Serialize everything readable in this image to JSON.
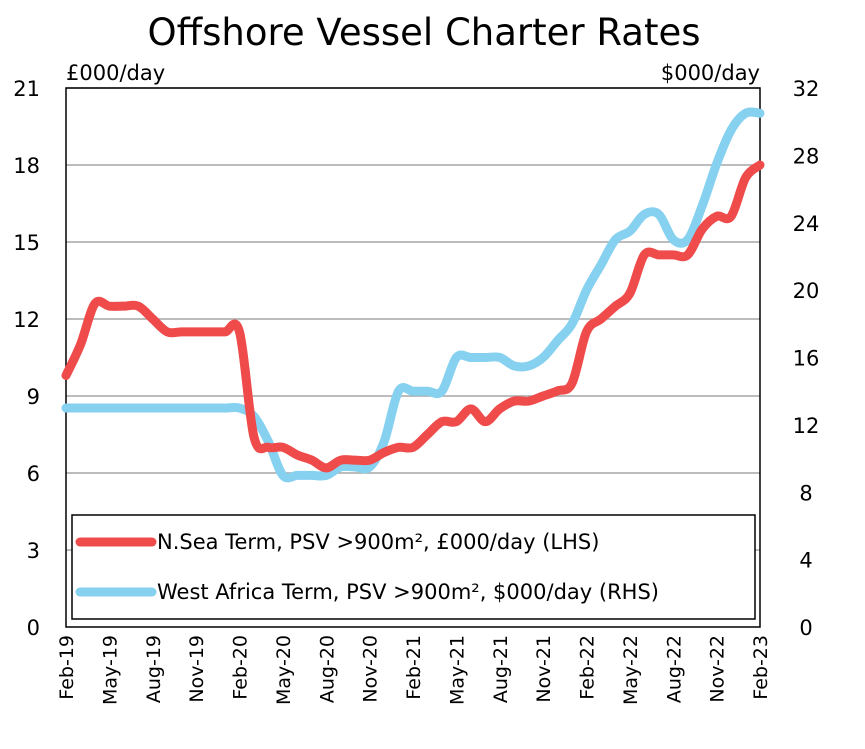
{
  "chart_data": {
    "type": "line",
    "title": "Offshore Vessel Charter Rates",
    "left_axis": {
      "unit_label": "£000/day",
      "ylim": [
        0,
        21
      ],
      "ticks": [
        "0",
        "3",
        "6",
        "9",
        "12",
        "15",
        "18",
        "21"
      ],
      "tick_values": [
        0,
        3,
        6,
        9,
        12,
        15,
        18,
        21
      ]
    },
    "right_axis": {
      "unit_label": "$000/day",
      "ylim": [
        0,
        32
      ],
      "ticks": [
        "0",
        "4",
        "8",
        "12",
        "16",
        "20",
        "24",
        "28",
        "32"
      ],
      "tick_values": [
        0,
        4,
        8,
        12,
        16,
        20,
        24,
        28,
        32
      ]
    },
    "x_axis": {
      "range_months": [
        0,
        48
      ],
      "ticks": [
        "Feb-19",
        "May-19",
        "Aug-19",
        "Nov-19",
        "Feb-20",
        "May-20",
        "Aug-20",
        "Nov-20",
        "Feb-21",
        "May-21",
        "Aug-21",
        "Nov-21",
        "Feb-22",
        "May-22",
        "Aug-22",
        "Nov-22",
        "Feb-23"
      ],
      "tick_months": [
        0,
        3,
        6,
        9,
        12,
        15,
        18,
        21,
        24,
        27,
        30,
        33,
        36,
        39,
        42,
        45,
        48
      ]
    },
    "grid": "horizontal",
    "legend_position": "bottom-left",
    "series": [
      {
        "name": "N.Sea Term, PSV >900m², £000/day (LHS)",
        "axis": "left",
        "color": "#ef4b4b",
        "x": [
          0,
          1,
          2,
          3,
          4,
          5,
          6,
          7,
          8,
          9,
          10,
          11,
          12,
          13,
          14,
          15,
          16,
          17,
          18,
          19,
          20,
          21,
          22,
          23,
          24,
          25,
          26,
          27,
          28,
          29,
          30,
          31,
          32,
          33,
          34,
          35,
          36,
          37,
          38,
          39,
          40,
          41,
          42,
          43,
          44,
          45,
          46,
          47,
          48
        ],
        "y": [
          9.8,
          11,
          12.6,
          12.5,
          12.5,
          12.5,
          12,
          11.5,
          11.5,
          11.5,
          11.5,
          11.5,
          11.5,
          7.4,
          7,
          7,
          6.7,
          6.5,
          6.2,
          6.5,
          6.5,
          6.5,
          6.8,
          7,
          7,
          7.5,
          8,
          8,
          8.5,
          8,
          8.5,
          8.8,
          8.8,
          9,
          9.2,
          9.5,
          11.5,
          12,
          12.5,
          13,
          14.5,
          14.5,
          14.5,
          14.5,
          15.5,
          16,
          16,
          17.5,
          18
        ]
      },
      {
        "name": "West Africa Term, PSV >900m², $000/day (RHS)",
        "axis": "right",
        "color": "#86d0f0",
        "x": [
          0,
          1,
          2,
          3,
          4,
          5,
          6,
          7,
          8,
          9,
          10,
          11,
          12,
          13,
          14,
          15,
          16,
          17,
          18,
          19,
          20,
          21,
          22,
          23,
          24,
          25,
          26,
          27,
          28,
          29,
          30,
          31,
          32,
          33,
          34,
          35,
          36,
          37,
          38,
          39,
          40,
          41,
          42,
          43,
          44,
          45,
          46,
          47,
          48
        ],
        "y": [
          13,
          13,
          13,
          13,
          13,
          13,
          13,
          13,
          13,
          13,
          13,
          13,
          13,
          12.5,
          11,
          9,
          9,
          9,
          9,
          9.5,
          9.5,
          9.5,
          11,
          14,
          14,
          14,
          14,
          16,
          16,
          16,
          16,
          15.5,
          15.5,
          16,
          17,
          18,
          20,
          21.5,
          23,
          23.5,
          24.5,
          24.5,
          23,
          23,
          25,
          27.5,
          29.5,
          30.5,
          30.5
        ]
      }
    ]
  }
}
